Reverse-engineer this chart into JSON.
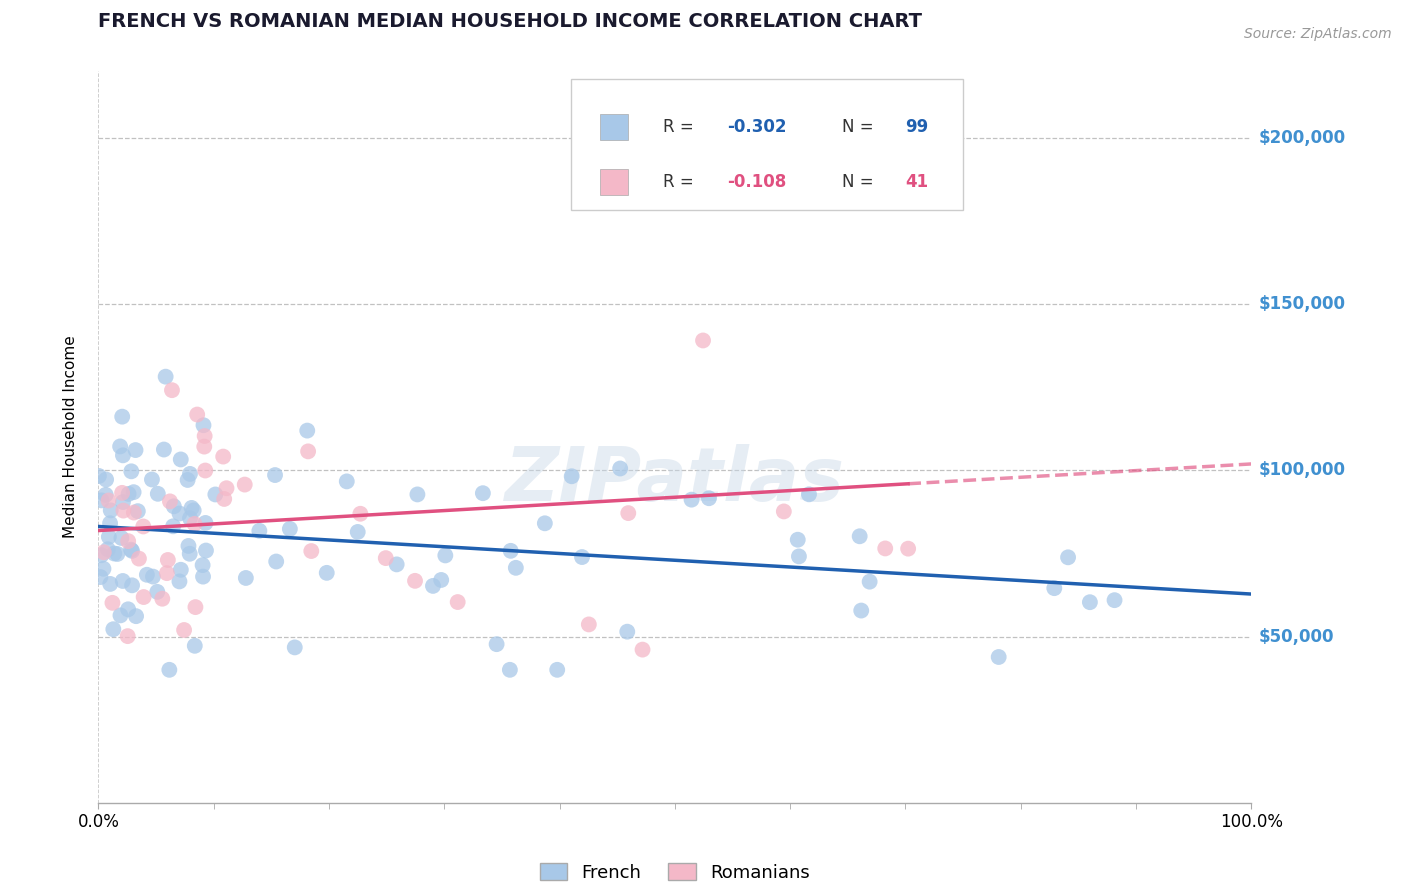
{
  "title": "FRENCH VS ROMANIAN MEDIAN HOUSEHOLD INCOME CORRELATION CHART",
  "source": "Source: ZipAtlas.com",
  "ylabel": "Median Household Income",
  "watermark": "ZIPatlas",
  "french_R": "-0.302",
  "french_N": 99,
  "romanian_R": "-0.108",
  "romanian_N": 41,
  "french_color": "#a8c8e8",
  "romanian_color": "#f4b8c8",
  "french_line_color": "#2060b0",
  "romanian_line_color": "#e05080",
  "ytick_color": "#4090d0",
  "ylim_min": 0,
  "ylim_max": 220000,
  "xlim_min": 0.0,
  "xlim_max": 1.0,
  "yticks": [
    50000,
    100000,
    150000,
    200000
  ],
  "ytick_labels": [
    "$50,000",
    "$100,000",
    "$150,000",
    "$200,000"
  ],
  "xtick_labels": [
    "0.0%",
    "100.0%"
  ],
  "background_color": "#ffffff",
  "grid_color": "#bbbbbb",
  "title_fontsize": 14,
  "label_fontsize": 11,
  "tick_fontsize": 12,
  "legend_fontsize": 13
}
